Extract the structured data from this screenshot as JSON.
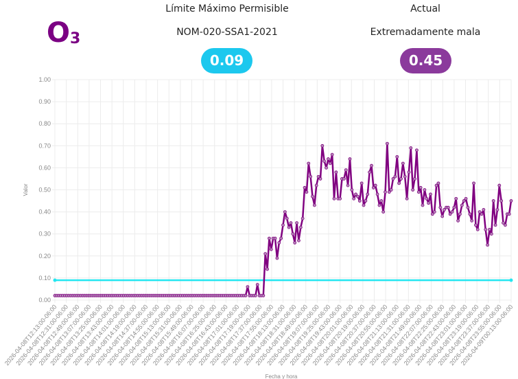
{
  "pollutant": {
    "symbol": "O",
    "subscript": "3"
  },
  "limit": {
    "title": "Límite Máximo Permisible",
    "norm": "NOM-020-SSA1-2021",
    "value": "0.09",
    "color": "#1cc8ee"
  },
  "actual": {
    "title": "Actual",
    "status": "Extremadamente mala",
    "value": "0.45",
    "color": "#8b3a9c"
  },
  "chart_data": {
    "type": "line",
    "xlabel": "Fecha y hora",
    "ylabel": "Valor",
    "ylim": [
      0,
      1
    ],
    "yticks": [
      "0.00",
      "0.10",
      "0.20",
      "0.30",
      "0.40",
      "0.50",
      "0.60",
      "0.70",
      "0.80",
      "0.90",
      "1.00"
    ],
    "grid": true,
    "xticks": [
      "2026-04-08T12:13:00-06:00",
      "2026-04-08T12:31:00-06:00",
      "2026-04-08T12:49:00-06:00",
      "2026-04-08T13:07:00-06:00",
      "2026-04-08T13:25:00-06:00",
      "2026-04-08T13:43:00-06:00",
      "2026-04-08T14:01:00-06:00",
      "2026-04-08T14:19:00-06:00",
      "2026-04-08T14:37:00-06:00",
      "2026-04-08T14:55:00-06:00",
      "2026-04-08T15:13:00-06:00",
      "2026-04-08T15:31:00-06:00",
      "2026-04-08T15:49:00-06:00",
      "2026-04-08T16:07:00-06:00",
      "2026-04-08T16:25:00-06:00",
      "2026-04-08T16:43:00-06:00",
      "2026-04-08T17:01:00-06:00",
      "2026-04-08T17:19:00-06:00",
      "2026-04-08T17:37:00-06:00",
      "2026-04-08T17:55:00-06:00",
      "2026-04-08T18:13:00-06:00",
      "2026-04-08T18:31:00-06:00",
      "2026-04-08T18:49:00-06:00",
      "2026-04-08T19:07:00-06:00",
      "2026-04-08T19:25:00-06:00",
      "2026-04-08T19:43:00-06:00",
      "2026-04-08T20:01:00-06:00",
      "2026-04-08T20:19:00-06:00",
      "2026-04-08T20:37:00-06:00",
      "2026-04-08T20:55:00-06:00",
      "2026-04-08T21:13:00-06:00",
      "2026-04-08T21:31:00-06:00",
      "2026-04-08T21:49:00-06:00",
      "2026-04-08T22:07:00-06:00",
      "2026-04-08T22:25:00-06:00",
      "2026-04-08T22:43:00-06:00",
      "2026-04-08T23:01:00-06:00",
      "2026-04-08T23:19:00-06:00",
      "2026-04-08T23:37:00-06:00",
      "2026-04-08T23:55:00-06:00",
      "2026-04-09T00:13:00-06:00"
    ],
    "series": [
      {
        "name": "O3",
        "color": "#800080",
        "values": [
          0.02,
          0.02,
          0.02,
          0.02,
          0.02,
          0.02,
          0.02,
          0.02,
          0.02,
          0.02,
          0.02,
          0.02,
          0.02,
          0.02,
          0.02,
          0.02,
          0.02,
          0.02,
          0.02,
          0.02,
          0.02,
          0.02,
          0.02,
          0.02,
          0.02,
          0.02,
          0.02,
          0.02,
          0.02,
          0.02,
          0.02,
          0.02,
          0.02,
          0.02,
          0.02,
          0.02,
          0.02,
          0.02,
          0.02,
          0.02,
          0.02,
          0.02,
          0.02,
          0.02,
          0.02,
          0.02,
          0.02,
          0.02,
          0.02,
          0.02,
          0.02,
          0.02,
          0.02,
          0.02,
          0.02,
          0.02,
          0.02,
          0.02,
          0.02,
          0.02,
          0.02,
          0.02,
          0.02,
          0.02,
          0.02,
          0.02,
          0.02,
          0.02,
          0.02,
          0.02,
          0.02,
          0.02,
          0.02,
          0.02,
          0.02,
          0.02,
          0.02,
          0.02,
          0.02,
          0.02,
          0.02,
          0.02,
          0.02,
          0.02,
          0.02,
          0.02,
          0.02,
          0.02,
          0.02,
          0.02,
          0.02,
          0.02,
          0.02,
          0.02,
          0.02,
          0.02,
          0.02,
          0.02,
          0.06,
          0.02,
          0.02,
          0.02,
          0.02,
          0.07,
          0.02,
          0.02,
          0.02,
          0.21,
          0.14,
          0.28,
          0.23,
          0.28,
          0.28,
          0.19,
          0.26,
          0.28,
          0.34,
          0.4,
          0.37,
          0.33,
          0.35,
          0.3,
          0.26,
          0.35,
          0.27,
          0.33,
          0.37,
          0.51,
          0.49,
          0.62,
          0.56,
          0.47,
          0.43,
          0.52,
          0.56,
          0.55,
          0.7,
          0.63,
          0.6,
          0.64,
          0.62,
          0.66,
          0.46,
          0.58,
          0.46,
          0.46,
          0.55,
          0.55,
          0.59,
          0.52,
          0.64,
          0.5,
          0.46,
          0.48,
          0.47,
          0.45,
          0.53,
          0.43,
          0.45,
          0.48,
          0.58,
          0.61,
          0.51,
          0.52,
          0.48,
          0.43,
          0.45,
          0.4,
          0.49,
          0.71,
          0.49,
          0.5,
          0.55,
          0.56,
          0.65,
          0.53,
          0.55,
          0.62,
          0.56,
          0.46,
          0.58,
          0.69,
          0.5,
          0.55,
          0.68,
          0.49,
          0.51,
          0.43,
          0.5,
          0.46,
          0.44,
          0.48,
          0.39,
          0.4,
          0.52,
          0.53,
          0.42,
          0.38,
          0.41,
          0.42,
          0.42,
          0.39,
          0.4,
          0.42,
          0.46,
          0.36,
          0.39,
          0.43,
          0.45,
          0.46,
          0.42,
          0.39,
          0.36,
          0.53,
          0.34,
          0.32,
          0.4,
          0.39,
          0.41,
          0.32,
          0.25,
          0.32,
          0.3,
          0.45,
          0.34,
          0.41,
          0.52,
          0.45,
          0.35,
          0.34,
          0.39,
          0.39,
          0.45
        ]
      },
      {
        "name": "Límite",
        "color": "#22e6f0",
        "constant": 0.09
      }
    ]
  }
}
